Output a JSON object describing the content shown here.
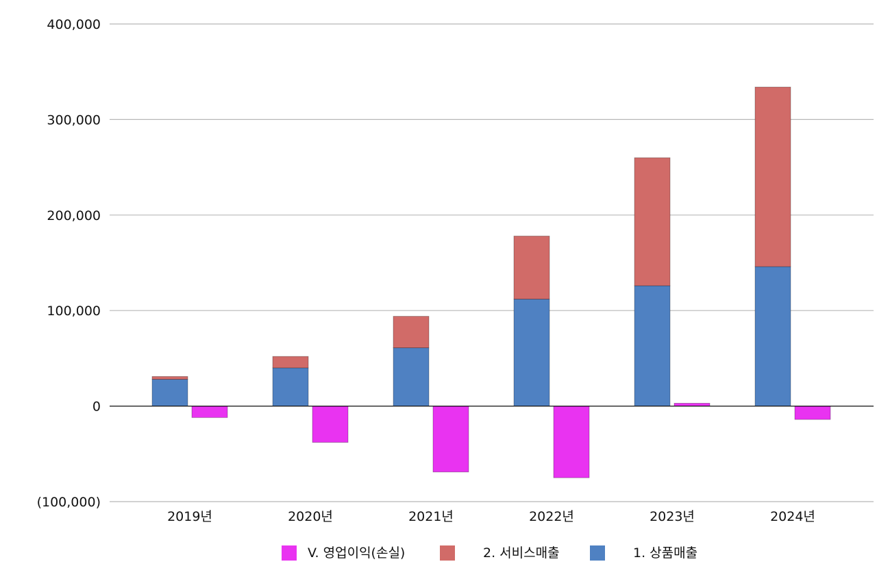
{
  "chart_data": {
    "type": "bar",
    "title": "",
    "xlabel": "",
    "ylabel": "",
    "categories": [
      "2019년",
      "2020년",
      "2021년",
      "2022년",
      "2023년",
      "2024년"
    ],
    "series": [
      {
        "name": "1. 상품매출",
        "stack": "revenue",
        "color": "#4f81c2",
        "values": [
          28000,
          40000,
          61000,
          112000,
          126000,
          146000
        ]
      },
      {
        "name": "2. 서비스매출",
        "stack": "revenue",
        "color": "#d16b68",
        "values": [
          3000,
          12000,
          33000,
          66000,
          134000,
          188000
        ]
      },
      {
        "name": "V. 영업이익(손실)",
        "stack": "profit",
        "color": "#e933f1",
        "values": [
          -12000,
          -38000,
          -69000,
          -75000,
          3000,
          -14000
        ]
      }
    ],
    "ylim": [
      -100000,
      400000
    ],
    "yticks": [
      {
        "value": 400000,
        "label": "400,000"
      },
      {
        "value": 300000,
        "label": "300,000"
      },
      {
        "value": 200000,
        "label": "200,000"
      },
      {
        "value": 100000,
        "label": "100,000"
      },
      {
        "value": 0,
        "label": "0"
      },
      {
        "value": -100000,
        "label": "(100,000)"
      }
    ],
    "legend": {
      "position": "bottom",
      "items": [
        {
          "label": "V. 영업이익(손실)",
          "color": "#e933f1"
        },
        {
          "label": "2. 서비스매출",
          "color": "#d16b68"
        },
        {
          "label": "1. 상품매출",
          "color": "#4f81c2"
        }
      ]
    },
    "grid": true
  }
}
